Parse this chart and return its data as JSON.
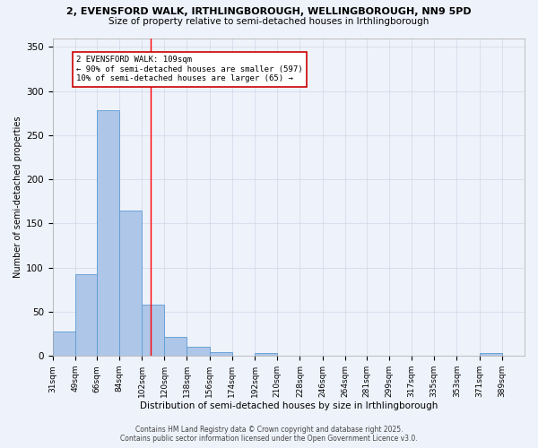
{
  "title_line1": "2, EVENSFORD WALK, IRTHLINGBOROUGH, WELLINGBOROUGH, NN9 5PD",
  "title_line2": "Size of property relative to semi-detached houses in Irthlingborough",
  "xlabel": "Distribution of semi-detached houses by size in Irthlingborough",
  "ylabel": "Number of semi-detached properties",
  "bin_labels": [
    "31sqm",
    "49sqm",
    "66sqm",
    "84sqm",
    "102sqm",
    "120sqm",
    "138sqm",
    "156sqm",
    "174sqm",
    "192sqm",
    "210sqm",
    "228sqm",
    "246sqm",
    "264sqm",
    "281sqm",
    "299sqm",
    "317sqm",
    "335sqm",
    "353sqm",
    "371sqm",
    "389sqm"
  ],
  "bin_edges": [
    31,
    49,
    66,
    84,
    102,
    120,
    138,
    156,
    174,
    192,
    210,
    228,
    246,
    264,
    281,
    299,
    317,
    335,
    353,
    371,
    389,
    407
  ],
  "bar_values": [
    28,
    93,
    278,
    165,
    58,
    22,
    10,
    4,
    0,
    3,
    0,
    0,
    0,
    0,
    0,
    0,
    0,
    0,
    0,
    3,
    0
  ],
  "bar_color": "#aec6e8",
  "bar_edge_color": "#5b9bd5",
  "grid_color": "#d0d8e8",
  "bg_color": "#eef2fa",
  "red_line_x": 109,
  "annotation_text": "2 EVENSFORD WALK: 109sqm\n← 90% of semi-detached houses are smaller (597)\n10% of semi-detached houses are larger (65) →",
  "annotation_box_color": "#ffffff",
  "annotation_box_edge": "#cc0000",
  "footnote1": "Contains HM Land Registry data © Crown copyright and database right 2025.",
  "footnote2": "Contains public sector information licensed under the Open Government Licence v3.0.",
  "ylim": [
    0,
    360
  ],
  "yticks": [
    0,
    50,
    100,
    150,
    200,
    250,
    300,
    350
  ]
}
